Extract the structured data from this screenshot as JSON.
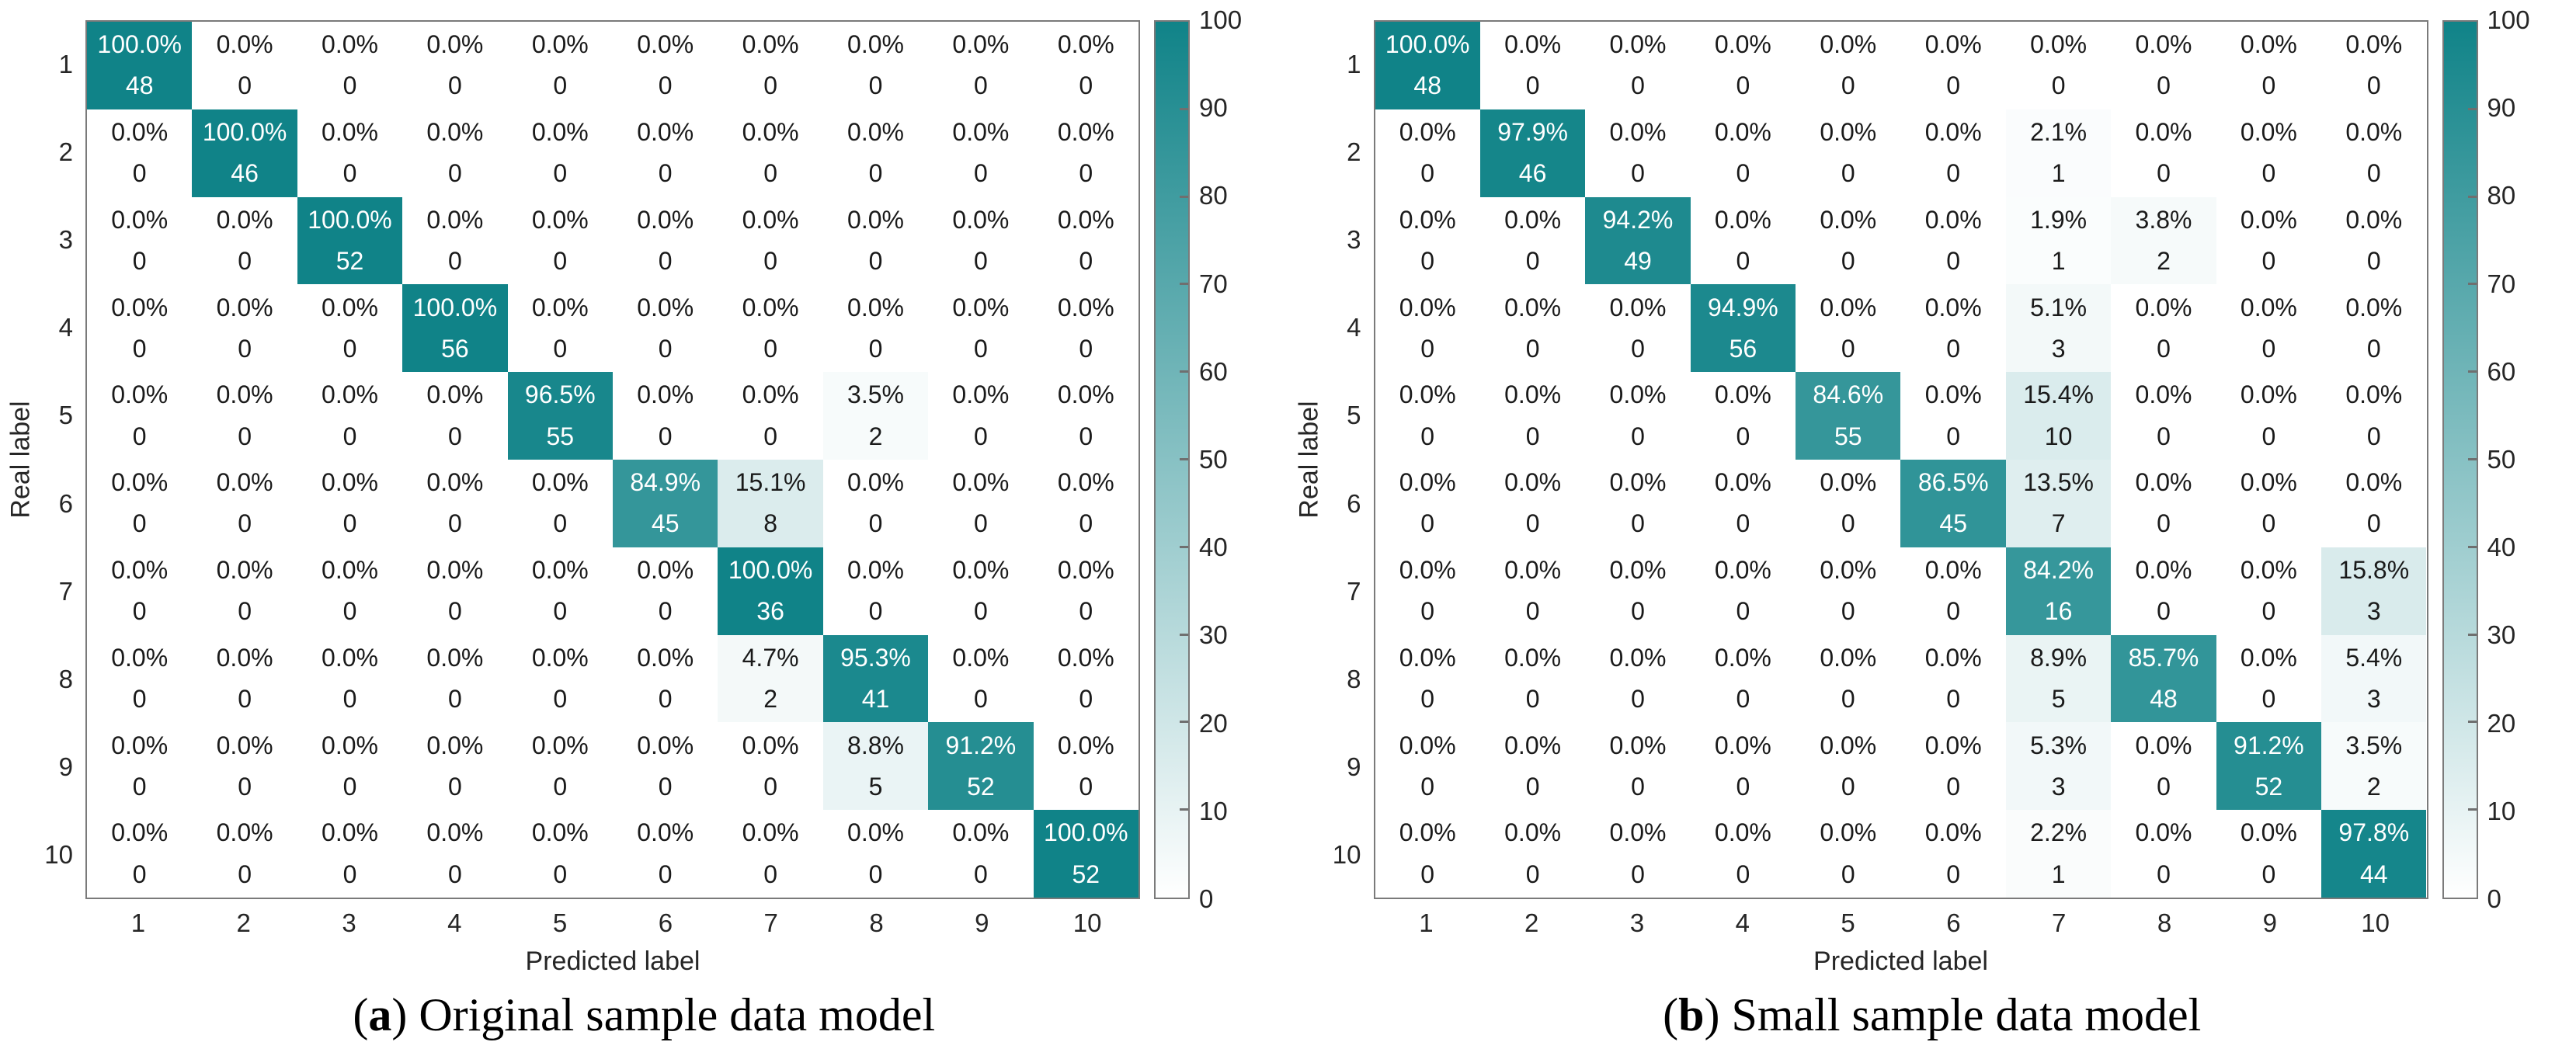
{
  "colors": {
    "heat_min": "#ffffff",
    "heat_max": "#108388",
    "cell_text_dark": "#1a1a1a",
    "cell_text_light": "#ffffff",
    "axis_text": "#262626",
    "border": "#7a7a7a"
  },
  "chart_data": [
    {
      "type": "heatmap",
      "title": "",
      "xlabel": "Predicted label",
      "ylabel": "Real label",
      "x_ticks": [
        "1",
        "2",
        "3",
        "4",
        "5",
        "6",
        "7",
        "8",
        "9",
        "10"
      ],
      "y_ticks": [
        "1",
        "2",
        "3",
        "4",
        "5",
        "6",
        "7",
        "8",
        "9",
        "10"
      ],
      "values_percent": [
        [
          100.0,
          0.0,
          0.0,
          0.0,
          0.0,
          0.0,
          0.0,
          0.0,
          0.0,
          0.0
        ],
        [
          0.0,
          100.0,
          0.0,
          0.0,
          0.0,
          0.0,
          0.0,
          0.0,
          0.0,
          0.0
        ],
        [
          0.0,
          0.0,
          100.0,
          0.0,
          0.0,
          0.0,
          0.0,
          0.0,
          0.0,
          0.0
        ],
        [
          0.0,
          0.0,
          0.0,
          100.0,
          0.0,
          0.0,
          0.0,
          0.0,
          0.0,
          0.0
        ],
        [
          0.0,
          0.0,
          0.0,
          0.0,
          96.5,
          0.0,
          0.0,
          3.5,
          0.0,
          0.0
        ],
        [
          0.0,
          0.0,
          0.0,
          0.0,
          0.0,
          84.9,
          15.1,
          0.0,
          0.0,
          0.0
        ],
        [
          0.0,
          0.0,
          0.0,
          0.0,
          0.0,
          0.0,
          100.0,
          0.0,
          0.0,
          0.0
        ],
        [
          0.0,
          0.0,
          0.0,
          0.0,
          0.0,
          0.0,
          4.7,
          95.3,
          0.0,
          0.0
        ],
        [
          0.0,
          0.0,
          0.0,
          0.0,
          0.0,
          0.0,
          0.0,
          8.8,
          91.2,
          0.0
        ],
        [
          0.0,
          0.0,
          0.0,
          0.0,
          0.0,
          0.0,
          0.0,
          0.0,
          0.0,
          100.0
        ]
      ],
      "counts": [
        [
          48,
          0,
          0,
          0,
          0,
          0,
          0,
          0,
          0,
          0
        ],
        [
          0,
          46,
          0,
          0,
          0,
          0,
          0,
          0,
          0,
          0
        ],
        [
          0,
          0,
          52,
          0,
          0,
          0,
          0,
          0,
          0,
          0
        ],
        [
          0,
          0,
          0,
          56,
          0,
          0,
          0,
          0,
          0,
          0
        ],
        [
          0,
          0,
          0,
          0,
          55,
          0,
          0,
          2,
          0,
          0
        ],
        [
          0,
          0,
          0,
          0,
          0,
          45,
          8,
          0,
          0,
          0
        ],
        [
          0,
          0,
          0,
          0,
          0,
          0,
          36,
          0,
          0,
          0
        ],
        [
          0,
          0,
          0,
          0,
          0,
          0,
          2,
          41,
          0,
          0
        ],
        [
          0,
          0,
          0,
          0,
          0,
          0,
          0,
          5,
          52,
          0
        ],
        [
          0,
          0,
          0,
          0,
          0,
          0,
          0,
          0,
          0,
          52
        ]
      ],
      "colorbar": {
        "min": 0,
        "max": 100,
        "step": 10
      },
      "caption": {
        "pre": "(",
        "letter": "a",
        "post": ") Original sample data model"
      }
    },
    {
      "type": "heatmap",
      "title": "",
      "xlabel": "Predicted label",
      "ylabel": "Real label",
      "x_ticks": [
        "1",
        "2",
        "3",
        "4",
        "5",
        "6",
        "7",
        "8",
        "9",
        "10"
      ],
      "y_ticks": [
        "1",
        "2",
        "3",
        "4",
        "5",
        "6",
        "7",
        "8",
        "9",
        "10"
      ],
      "values_percent": [
        [
          100.0,
          0.0,
          0.0,
          0.0,
          0.0,
          0.0,
          0.0,
          0.0,
          0.0,
          0.0
        ],
        [
          0.0,
          97.9,
          0.0,
          0.0,
          0.0,
          0.0,
          2.1,
          0.0,
          0.0,
          0.0
        ],
        [
          0.0,
          0.0,
          94.2,
          0.0,
          0.0,
          0.0,
          1.9,
          3.8,
          0.0,
          0.0
        ],
        [
          0.0,
          0.0,
          0.0,
          94.9,
          0.0,
          0.0,
          5.1,
          0.0,
          0.0,
          0.0
        ],
        [
          0.0,
          0.0,
          0.0,
          0.0,
          84.6,
          0.0,
          15.4,
          0.0,
          0.0,
          0.0
        ],
        [
          0.0,
          0.0,
          0.0,
          0.0,
          0.0,
          86.5,
          13.5,
          0.0,
          0.0,
          0.0
        ],
        [
          0.0,
          0.0,
          0.0,
          0.0,
          0.0,
          0.0,
          84.2,
          0.0,
          0.0,
          15.8
        ],
        [
          0.0,
          0.0,
          0.0,
          0.0,
          0.0,
          0.0,
          8.9,
          85.7,
          0.0,
          5.4
        ],
        [
          0.0,
          0.0,
          0.0,
          0.0,
          0.0,
          0.0,
          5.3,
          0.0,
          91.2,
          3.5
        ],
        [
          0.0,
          0.0,
          0.0,
          0.0,
          0.0,
          0.0,
          2.2,
          0.0,
          0.0,
          97.8
        ]
      ],
      "counts": [
        [
          48,
          0,
          0,
          0,
          0,
          0,
          0,
          0,
          0,
          0
        ],
        [
          0,
          46,
          0,
          0,
          0,
          0,
          1,
          0,
          0,
          0
        ],
        [
          0,
          0,
          49,
          0,
          0,
          0,
          1,
          2,
          0,
          0
        ],
        [
          0,
          0,
          0,
          56,
          0,
          0,
          3,
          0,
          0,
          0
        ],
        [
          0,
          0,
          0,
          0,
          55,
          0,
          10,
          0,
          0,
          0
        ],
        [
          0,
          0,
          0,
          0,
          0,
          45,
          7,
          0,
          0,
          0
        ],
        [
          0,
          0,
          0,
          0,
          0,
          0,
          16,
          0,
          0,
          3
        ],
        [
          0,
          0,
          0,
          0,
          0,
          0,
          5,
          48,
          0,
          3
        ],
        [
          0,
          0,
          0,
          0,
          0,
          0,
          3,
          0,
          52,
          2
        ],
        [
          0,
          0,
          0,
          0,
          0,
          0,
          1,
          0,
          0,
          44
        ]
      ],
      "colorbar": {
        "min": 0,
        "max": 100,
        "step": 10
      },
      "caption": {
        "pre": "(",
        "letter": "b",
        "post": ") Small sample data model"
      }
    }
  ]
}
